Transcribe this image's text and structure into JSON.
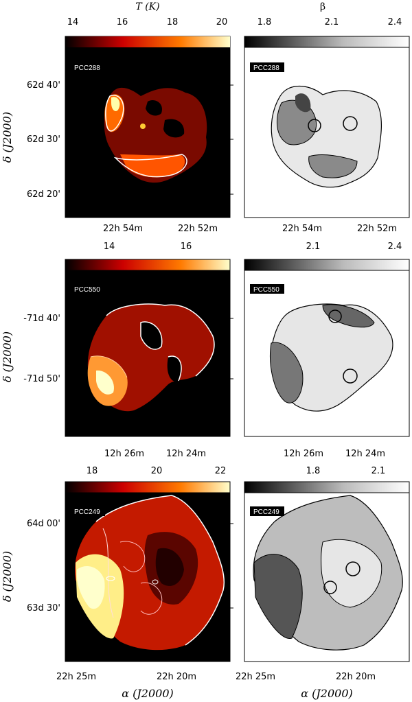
{
  "rows": [
    {
      "label": "PCC288",
      "temp_colorbar": {
        "title": "T (K)",
        "ticks": [
          "14",
          "16",
          "18",
          "20"
        ]
      },
      "beta_colorbar": {
        "title": "β",
        "ticks": [
          "1.8",
          "2.1",
          "2.4"
        ]
      },
      "y_ticks": [
        "62d 40'",
        "62d 30'",
        "62d 20'"
      ],
      "x_ticks": [
        "22h 54m",
        "22h 52m"
      ]
    },
    {
      "label": "PCC550",
      "temp_colorbar": {
        "title": "",
        "ticks": [
          "14",
          "16"
        ]
      },
      "beta_colorbar": {
        "title": "",
        "ticks": [
          "2.1",
          "2.4"
        ]
      },
      "y_ticks": [
        "-71d 40'",
        "-71d 50'"
      ],
      "x_ticks": [
        "12h 26m",
        "12h 24m"
      ]
    },
    {
      "label": "PCC249",
      "temp_colorbar": {
        "title": "",
        "ticks": [
          "18",
          "20",
          "22"
        ]
      },
      "beta_colorbar": {
        "title": "",
        "ticks": [
          "1.8",
          "2.1"
        ]
      },
      "y_ticks": [
        "64d 00'",
        "63d 30'"
      ],
      "x_ticks": [
        "22h 25m",
        "22h 20m"
      ]
    }
  ],
  "y_axis_title": "δ (J2000)",
  "x_axis_title": "α (J2000)",
  "colors": {
    "background_map": "#000000",
    "hot": "#ffff99",
    "warm": "#ff3300",
    "cool": "#800000",
    "contour_dark": "#000000",
    "contour_light": "#ffffff"
  }
}
